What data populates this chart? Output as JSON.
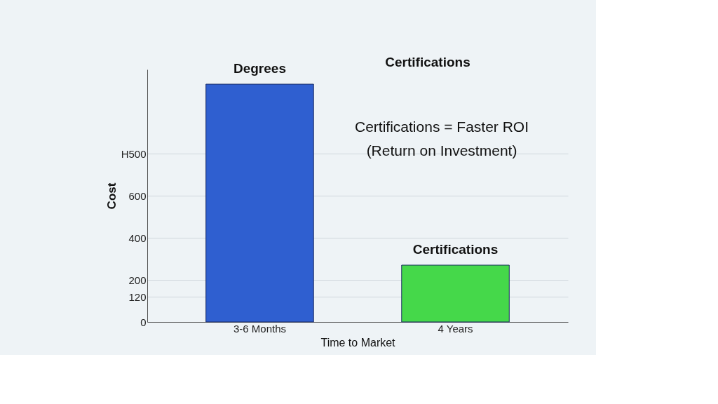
{
  "chart_data": {
    "type": "bar",
    "xlabel": "Time to Market",
    "ylabel": "Cost",
    "categories": [
      "3-6 Months",
      "4 Years"
    ],
    "series": [
      {
        "name": "Degrees",
        "color": "#2f5fd0",
        "values": [
          1130,
          null
        ]
      },
      {
        "name": "Certifications",
        "color": "#45d84a",
        "values": [
          null,
          270
        ]
      }
    ],
    "ylim": [
      0,
      1200
    ],
    "yticks": [
      0,
      120,
      200,
      400,
      600,
      {
        "value": 800,
        "label": "H500"
      }
    ],
    "grid": "y",
    "legend": false,
    "annotations": [
      "Certifications",
      "Certifications = Faster ROI\n(Return on Investment)"
    ]
  }
}
